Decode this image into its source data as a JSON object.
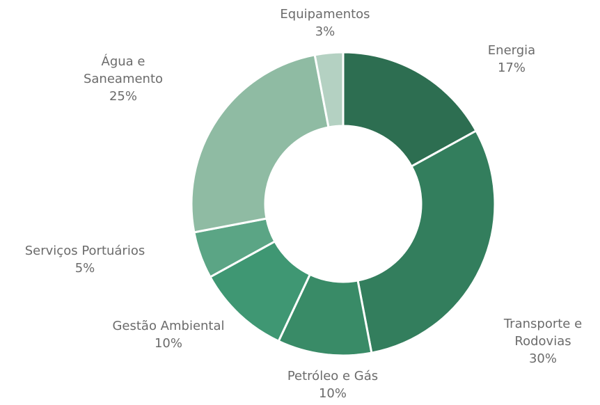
{
  "chart_data": {
    "type": "donut",
    "categories": [
      "Energia",
      "Transporte e Rodovias",
      "Petróleo e Gás",
      "Gestão Ambiental",
      "Serviços Portuários",
      "Água e Saneamento",
      "Equipamentos"
    ],
    "values": [
      17,
      30,
      10,
      10,
      5,
      25,
      3
    ],
    "value_labels": [
      "17%",
      "30%",
      "10%",
      "10%",
      "5%",
      "25%",
      "3%"
    ],
    "colors": [
      "#2d6e51",
      "#337e5d",
      "#398b67",
      "#3f9773",
      "#5ba585",
      "#8fbba3",
      "#b4d1c2"
    ]
  }
}
